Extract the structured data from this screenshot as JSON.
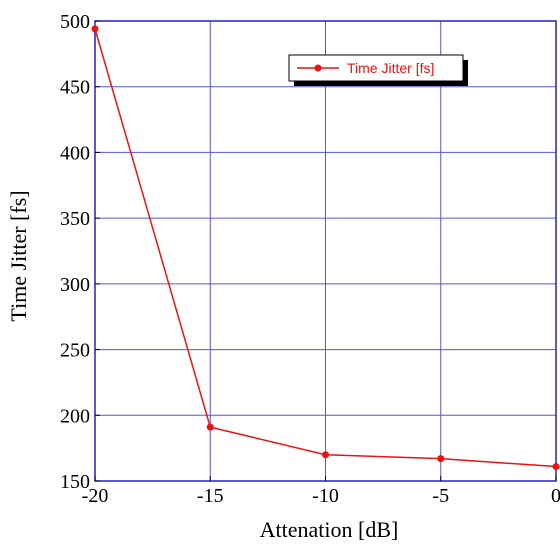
{
  "chart_data": {
    "type": "line",
    "xlabel": "Attenation [dB]",
    "ylabel": "Time Jitter [fs]",
    "xlim": [
      -20,
      0
    ],
    "ylim": [
      150,
      500
    ],
    "xticks": [
      -20,
      -15,
      -10,
      -5,
      0
    ],
    "yticks": [
      150,
      200,
      250,
      300,
      350,
      400,
      450,
      500
    ],
    "grid": true,
    "legend_position": "top-right",
    "series": [
      {
        "name": "Time Jitter [fs]",
        "color": "#ee1111",
        "marker": "circle",
        "x": [
          -20,
          -15,
          -10,
          -5,
          0
        ],
        "y": [
          494,
          191,
          170,
          167,
          161
        ]
      }
    ]
  },
  "colors": {
    "grid": "#5555dd",
    "frame": "#2222cc"
  }
}
